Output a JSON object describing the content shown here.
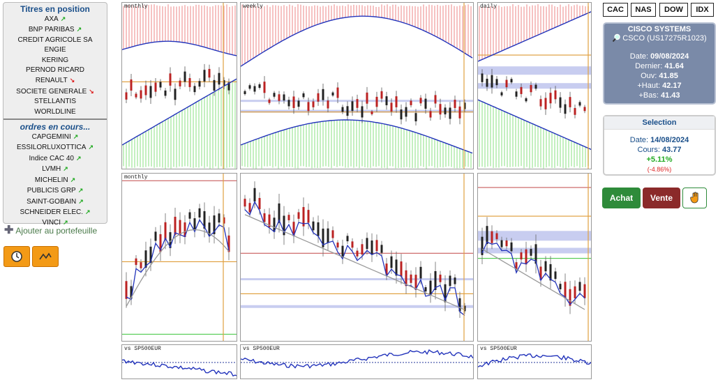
{
  "positions": {
    "title": "Titres en position",
    "items": [
      {
        "label": "AXA",
        "trend": "up"
      },
      {
        "label": "BNP PARIBAS",
        "trend": "up"
      },
      {
        "label": "CREDIT AGRICOLE SA",
        "trend": ""
      },
      {
        "label": "ENGIE",
        "trend": ""
      },
      {
        "label": "KERING",
        "trend": ""
      },
      {
        "label": "PERNOD RICARD",
        "trend": ""
      },
      {
        "label": "RENAULT",
        "trend": "down"
      },
      {
        "label": "SOCIETE GENERALE",
        "trend": "down"
      },
      {
        "label": "STELLANTIS",
        "trend": ""
      },
      {
        "label": "WORLDLINE",
        "trend": ""
      }
    ]
  },
  "orders": {
    "title": "ordres en cours...",
    "items": [
      {
        "label": "CAPGEMINI",
        "trend": "up"
      },
      {
        "label": "ESSILORLUXOTTICA",
        "trend": "up"
      },
      {
        "label": "Indice CAC 40",
        "trend": "up"
      },
      {
        "label": "LVMH",
        "trend": "up"
      },
      {
        "label": "MICHELIN",
        "trend": "up"
      },
      {
        "label": "PUBLICIS GRP",
        "trend": "up"
      },
      {
        "label": "SAINT-GOBAIN",
        "trend": "up"
      },
      {
        "label": "SCHNEIDER ELEC.",
        "trend": "up"
      },
      {
        "label": "VINCI",
        "trend": "up"
      }
    ]
  },
  "add_portfolio": "Ajouter au portefeuille",
  "markets": [
    "CAC",
    "NAS",
    "DOW",
    "IDX"
  ],
  "charts": {
    "monthly": "monthly",
    "weekly": "weekly",
    "daily": "daily",
    "vs": "vs SP500EUR"
  },
  "quote": {
    "name": "CISCO SYSTEMS",
    "ticker": "CSCO (US17275R1023)",
    "date_label": "Date:",
    "date": "09/08/2024",
    "last_label": "Dernier:",
    "last": "41.64",
    "open_label": "Ouv:",
    "open": "41.85",
    "high_label": "+Haut:",
    "high": "42.17",
    "low_label": "+Bas:",
    "low": "41.43"
  },
  "selection": {
    "title": "Selection",
    "date_label": "Date:",
    "date": "14/08/2024",
    "price_label": "Cours:",
    "price": "43.77",
    "change": "+5.11%",
    "change2": "(-4.86%)"
  },
  "actions": {
    "buy": "Achat",
    "sell": "Vente"
  },
  "icons": {
    "clock": "clock-icon",
    "trend": "trend-icon",
    "hand": "hand-icon",
    "search": "search-icon",
    "plus": "plus-icon"
  },
  "colors": {
    "up": "#22aa22",
    "down": "#dd2222",
    "buy": "#2e8b3a",
    "sell": "#8b2a2a",
    "quote_bg": "#7a8aa8",
    "orange": "#f39a16",
    "band_red": "#f4b3b3",
    "band_green": "#b6ecb0",
    "line_blue": "#2233bb"
  }
}
